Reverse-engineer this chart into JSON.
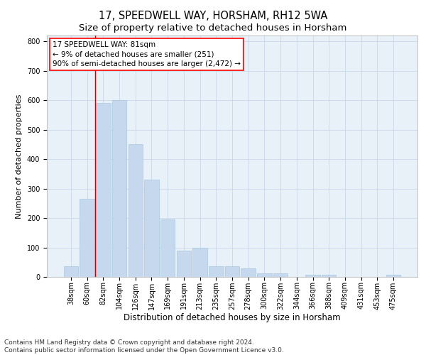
{
  "title1": "17, SPEEDWELL WAY, HORSHAM, RH12 5WA",
  "title2": "Size of property relative to detached houses in Horsham",
  "xlabel": "Distribution of detached houses by size in Horsham",
  "ylabel": "Number of detached properties",
  "categories": [
    "38sqm",
    "60sqm",
    "82sqm",
    "104sqm",
    "126sqm",
    "147sqm",
    "169sqm",
    "191sqm",
    "213sqm",
    "235sqm",
    "257sqm",
    "278sqm",
    "300sqm",
    "322sqm",
    "344sqm",
    "366sqm",
    "388sqm",
    "409sqm",
    "431sqm",
    "453sqm",
    "475sqm"
  ],
  "values": [
    37,
    265,
    590,
    600,
    450,
    330,
    195,
    90,
    100,
    37,
    35,
    30,
    12,
    12,
    0,
    8,
    8,
    0,
    0,
    0,
    8
  ],
  "bar_color": "#c5d8ed",
  "bar_edge_color": "#a8c8e0",
  "annotation_box_text": "17 SPEEDWELL WAY: 81sqm\n← 9% of detached houses are smaller (251)\n90% of semi-detached houses are larger (2,472) →",
  "vline_color": "#cc0000",
  "grid_color": "#c8d8e8",
  "background_color": "#e8f0f8",
  "ylim": [
    0,
    820
  ],
  "yticks": [
    0,
    100,
    200,
    300,
    400,
    500,
    600,
    700,
    800
  ],
  "title1_fontsize": 10.5,
  "title2_fontsize": 9.5,
  "xlabel_fontsize": 8.5,
  "ylabel_fontsize": 8,
  "tick_fontsize": 7,
  "annotation_fontsize": 7.5,
  "footer_fontsize": 6.5,
  "footer1": "Contains HM Land Registry data © Crown copyright and database right 2024.",
  "footer2": "Contains public sector information licensed under the Open Government Licence v3.0."
}
